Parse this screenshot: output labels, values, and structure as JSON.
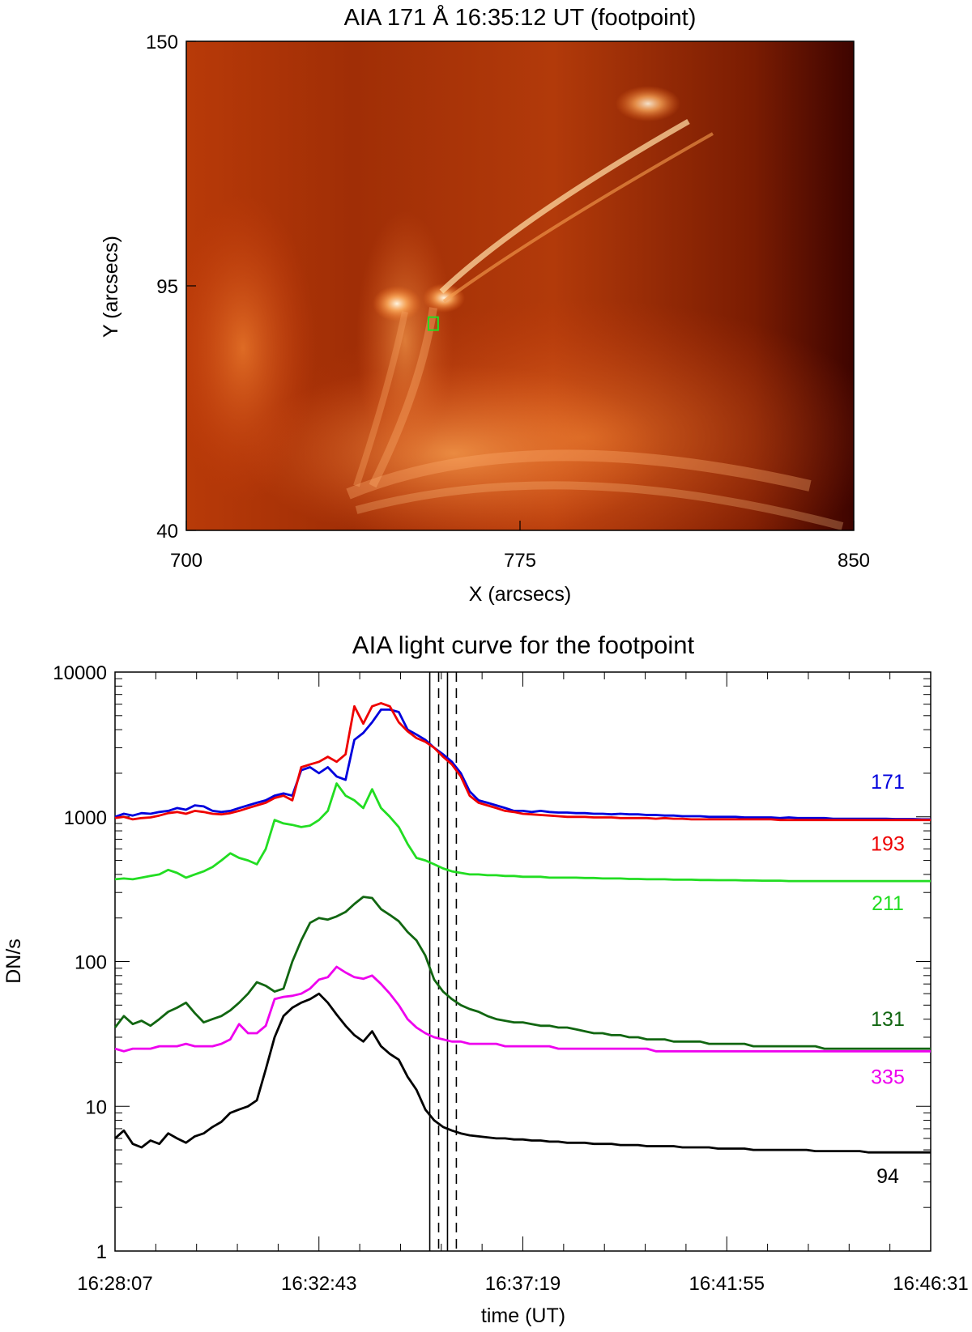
{
  "chart_data": [
    {
      "type": "heatmap",
      "title": "AIA 171 Å 16:35:12 UT (footpoint)",
      "xlabel": "X (arcsecs)",
      "ylabel": "Y (arcsecs)",
      "xlim": [
        700,
        850
      ],
      "ylim": [
        40,
        150
      ],
      "xticks": [
        "700",
        "775",
        "850"
      ],
      "yticks": [
        "150",
        "95",
        "40"
      ],
      "colormap": [
        "#3a0000",
        "#8b1a05",
        "#c8400a",
        "#f07a20",
        "#ffd8a0",
        "#ffffff"
      ],
      "marker": {
        "x": 755.5,
        "y": 86.5,
        "color": "#22dd22"
      }
    },
    {
      "type": "line",
      "title": "AIA light curve for the footpoint",
      "xlabel": "time (UT)",
      "ylabel": "DN/s",
      "yscale": "log",
      "ylim": [
        1,
        10000
      ],
      "xlim": [
        0,
        1104
      ],
      "yticks": [
        "1",
        "10",
        "100",
        "1000",
        "10000"
      ],
      "xticks": [
        {
          "t": 0,
          "label": "16:28:07"
        },
        {
          "t": 276,
          "label": "16:32:43"
        },
        {
          "t": 552,
          "label": "16:37:19"
        },
        {
          "t": 828,
          "label": "16:41:55"
        },
        {
          "t": 1104,
          "label": "16:46:31"
        }
      ],
      "vlines": [
        {
          "t": 426,
          "style": "solid"
        },
        {
          "t": 438,
          "style": "dashed"
        },
        {
          "t": 450,
          "style": "solid"
        },
        {
          "t": 462,
          "style": "dashed"
        }
      ],
      "x": [
        0,
        12,
        24,
        36,
        48,
        60,
        72,
        84,
        96,
        108,
        120,
        132,
        144,
        156,
        168,
        180,
        192,
        204,
        216,
        228,
        240,
        252,
        264,
        276,
        288,
        300,
        312,
        324,
        336,
        348,
        360,
        372,
        384,
        396,
        408,
        420,
        432,
        444,
        456,
        468,
        480,
        492,
        504,
        516,
        528,
        540,
        552,
        564,
        576,
        588,
        600,
        612,
        624,
        636,
        648,
        660,
        672,
        684,
        696,
        708,
        720,
        732,
        744,
        756,
        768,
        780,
        792,
        804,
        816,
        828,
        840,
        852,
        864,
        876,
        888,
        900,
        912,
        924,
        936,
        948,
        960,
        972,
        984,
        996,
        1008,
        1020,
        1032,
        1044,
        1056,
        1068,
        1080,
        1092,
        1104
      ],
      "series": [
        {
          "name": "171",
          "color": "#0000dd",
          "values": [
            1000,
            1050,
            1020,
            1060,
            1050,
            1080,
            1100,
            1150,
            1120,
            1200,
            1180,
            1100,
            1080,
            1100,
            1150,
            1200,
            1250,
            1300,
            1400,
            1450,
            1400,
            2100,
            2200,
            2000,
            2200,
            1900,
            1800,
            3400,
            3800,
            4500,
            5500,
            5500,
            5300,
            4000,
            3700,
            3400,
            3000,
            2700,
            2400,
            2000,
            1500,
            1300,
            1250,
            1200,
            1150,
            1100,
            1100,
            1080,
            1100,
            1080,
            1070,
            1070,
            1060,
            1060,
            1050,
            1050,
            1040,
            1050,
            1040,
            1040,
            1030,
            1030,
            1020,
            1020,
            1010,
            1010,
            1010,
            1000,
            1000,
            1000,
            1000,
            990,
            990,
            990,
            990,
            980,
            990,
            980,
            980,
            980,
            980,
            970,
            970,
            970,
            970,
            970,
            970,
            970,
            965,
            965,
            965,
            960,
            960
          ]
        },
        {
          "name": "193",
          "color": "#ee0000",
          "values": [
            980,
            1000,
            960,
            980,
            990,
            1020,
            1060,
            1080,
            1050,
            1100,
            1080,
            1050,
            1040,
            1060,
            1100,
            1150,
            1200,
            1250,
            1350,
            1400,
            1300,
            2200,
            2300,
            2400,
            2600,
            2400,
            2700,
            5800,
            4400,
            5800,
            6100,
            5800,
            4500,
            3900,
            3500,
            3300,
            3000,
            2600,
            2300,
            1900,
            1400,
            1250,
            1200,
            1150,
            1100,
            1080,
            1050,
            1040,
            1030,
            1020,
            1010,
            1000,
            1000,
            1000,
            990,
            990,
            990,
            980,
            980,
            980,
            980,
            970,
            980,
            970,
            970,
            960,
            960,
            960,
            960,
            960,
            960,
            960,
            960,
            960,
            960,
            950,
            950,
            950,
            950,
            950,
            950,
            950,
            950,
            950,
            950,
            950,
            950,
            950,
            950,
            950,
            950,
            950,
            950
          ]
        },
        {
          "name": "211",
          "color": "#22dd22",
          "values": [
            370,
            375,
            370,
            380,
            390,
            400,
            430,
            410,
            380,
            400,
            420,
            450,
            500,
            560,
            520,
            500,
            470,
            600,
            950,
            900,
            880,
            850,
            870,
            950,
            1100,
            1700,
            1400,
            1300,
            1150,
            1550,
            1150,
            1000,
            850,
            650,
            520,
            500,
            470,
            440,
            420,
            410,
            400,
            400,
            395,
            395,
            390,
            390,
            385,
            385,
            385,
            380,
            380,
            380,
            380,
            378,
            378,
            375,
            375,
            375,
            372,
            372,
            370,
            370,
            370,
            368,
            368,
            368,
            366,
            366,
            365,
            365,
            365,
            363,
            363,
            362,
            362,
            362,
            360,
            360,
            360,
            360,
            360,
            360,
            360,
            360,
            360,
            360,
            360,
            360,
            360,
            360,
            360,
            360,
            360
          ]
        },
        {
          "name": "131",
          "color": "#116611",
          "values": [
            35,
            42,
            37,
            39,
            36,
            40,
            45,
            48,
            52,
            44,
            38,
            40,
            42,
            46,
            52,
            60,
            72,
            68,
            62,
            65,
            100,
            140,
            185,
            200,
            195,
            205,
            220,
            250,
            280,
            275,
            230,
            210,
            190,
            160,
            140,
            110,
            75,
            62,
            55,
            50,
            47,
            45,
            42,
            40,
            39,
            38,
            38,
            37,
            36,
            36,
            35,
            35,
            34,
            33,
            32,
            32,
            31,
            31,
            30,
            30,
            29,
            29,
            29,
            28,
            28,
            28,
            28,
            27,
            27,
            27,
            27,
            27,
            26,
            26,
            26,
            26,
            26,
            26,
            26,
            26,
            25,
            25,
            25,
            25,
            25,
            25,
            25,
            25,
            25,
            25,
            25,
            25,
            25
          ]
        },
        {
          "name": "335",
          "color": "#ee00ee",
          "values": [
            25,
            24,
            25,
            25,
            25,
            26,
            26,
            26,
            27,
            26,
            26,
            26,
            27,
            29,
            37,
            32,
            32,
            36,
            55,
            57,
            58,
            60,
            65,
            75,
            78,
            92,
            84,
            78,
            76,
            80,
            70,
            60,
            50,
            40,
            35,
            32,
            30,
            29,
            28,
            28,
            27,
            27,
            27,
            27,
            26,
            26,
            26,
            26,
            26,
            26,
            25,
            25,
            25,
            25,
            25,
            25,
            25,
            25,
            25,
            25,
            25,
            24,
            24,
            24,
            24,
            24,
            24,
            24,
            24,
            24,
            24,
            24,
            24,
            24,
            24,
            24,
            24,
            24,
            24,
            24,
            24,
            24,
            24,
            24,
            24,
            24,
            24,
            24,
            24,
            24,
            24,
            24,
            24
          ]
        },
        {
          "name": "94",
          "color": "#000000",
          "values": [
            6.0,
            6.8,
            5.5,
            5.2,
            5.8,
            5.5,
            6.5,
            6.0,
            5.6,
            6.2,
            6.5,
            7.2,
            7.8,
            9.0,
            9.5,
            10.0,
            11.0,
            18.0,
            30.0,
            42.0,
            48.0,
            52.0,
            55.0,
            60.0,
            52.0,
            43.0,
            36.0,
            31.0,
            28.0,
            33.0,
            26.0,
            23.0,
            21.0,
            16.0,
            13.0,
            9.5,
            8.0,
            7.2,
            6.8,
            6.5,
            6.3,
            6.2,
            6.1,
            6.0,
            6.0,
            5.9,
            5.9,
            5.8,
            5.8,
            5.7,
            5.7,
            5.6,
            5.6,
            5.6,
            5.5,
            5.5,
            5.5,
            5.4,
            5.4,
            5.4,
            5.3,
            5.3,
            5.3,
            5.3,
            5.2,
            5.2,
            5.2,
            5.2,
            5.1,
            5.1,
            5.1,
            5.1,
            5.0,
            5.0,
            5.0,
            5.0,
            5.0,
            5.0,
            5.0,
            4.9,
            4.9,
            4.9,
            4.9,
            4.9,
            4.9,
            4.8,
            4.8,
            4.8,
            4.8,
            4.8,
            4.8,
            4.8,
            4.8
          ]
        }
      ]
    }
  ]
}
